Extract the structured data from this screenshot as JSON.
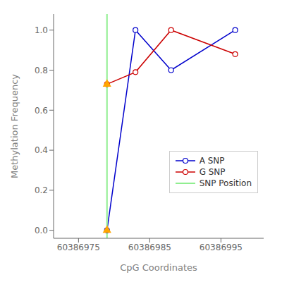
{
  "chart_data": {
    "type": "line",
    "xlabel": "CpG Coordinates",
    "ylabel": "Methylation Frequency",
    "series": [
      {
        "name": "A SNP",
        "color": "#0000CC",
        "marker": "circle",
        "x": [
          60386979,
          60386983,
          60386988,
          60386997
        ],
        "values": [
          0.0,
          1.0,
          0.8,
          1.0
        ]
      },
      {
        "name": "G SNP",
        "color": "#CC0000",
        "marker": "circle",
        "x": [
          60386979,
          60386983,
          60386988,
          60386997
        ],
        "values": [
          0.73,
          0.79,
          1.0,
          0.88
        ]
      },
      {
        "name": "SNP Position",
        "type": "vline",
        "color": "#90EE90",
        "x": [
          60386979
        ]
      },
      {
        "type": "scatter",
        "color": "#FFA500",
        "marker": "triangle",
        "x": [
          60386979,
          60386979
        ],
        "values": [
          0.73,
          0.0
        ]
      }
    ],
    "xlim": [
      60386971.5,
      60387001
    ],
    "ylim": [
      -0.04,
      1.08
    ],
    "xticks": [
      60386975,
      60386985,
      60386995
    ],
    "yticks": [
      {
        "value": 0,
        "label": "0.0"
      },
      0.2,
      0.4,
      0.6,
      0.8,
      {
        "value": 1,
        "label": "1.0"
      }
    ],
    "legend": "lower right"
  }
}
